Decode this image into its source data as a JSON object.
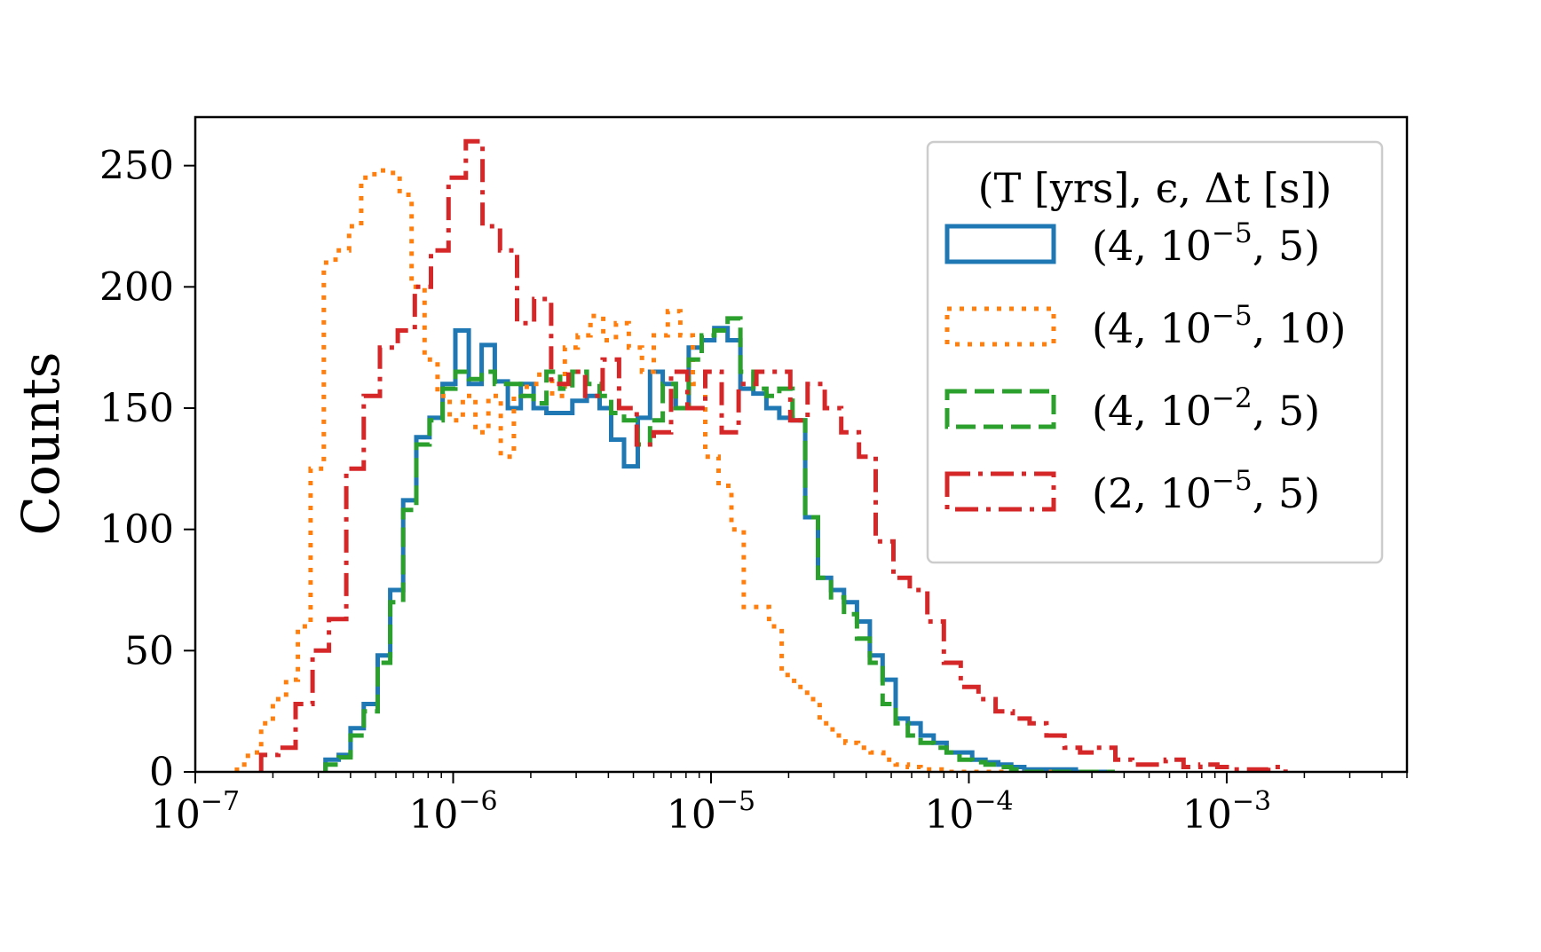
{
  "chart_data": {
    "type": "histogram-step",
    "title": "",
    "xlabel": "",
    "ylabel": "Counts",
    "xscale": "log",
    "xlim": [
      1e-07,
      0.005
    ],
    "ylim": [
      0,
      270
    ],
    "xticks": [
      {
        "value": 1e-07,
        "mant": "10",
        "exp": "−7"
      },
      {
        "value": 1e-06,
        "mant": "10",
        "exp": "−6"
      },
      {
        "value": 1e-05,
        "mant": "10",
        "exp": "−5"
      },
      {
        "value": 0.0001,
        "mant": "10",
        "exp": "−4"
      },
      {
        "value": 0.001,
        "mant": "10",
        "exp": "−3"
      }
    ],
    "yticks": [
      {
        "value": 0,
        "label": "0"
      },
      {
        "value": 50,
        "label": "50"
      },
      {
        "value": 100,
        "label": "100"
      },
      {
        "value": 150,
        "label": "150"
      },
      {
        "value": 200,
        "label": "200"
      },
      {
        "value": 250,
        "label": "250"
      }
    ],
    "legend": {
      "placement": "top-right",
      "title": "(T [yrs], ϵ, Δt [s])"
    },
    "series": [
      {
        "name": "(4, 10−5, 5)",
        "label_parts": {
          "pre": "(4, 10",
          "exp": "−5",
          "post": ", 5)"
        },
        "color": "#1f77b4",
        "dash": "solid",
        "bin_edges": [
          3.2e-07,
          3.6e-07,
          4e-07,
          4.5e-07,
          5.1e-07,
          5.7e-07,
          6.4e-07,
          7.2e-07,
          8.1e-07,
          9.1e-07,
          1.02e-06,
          1.15e-06,
          1.29e-06,
          1.45e-06,
          1.63e-06,
          1.83e-06,
          2.05e-06,
          2.3e-06,
          2.6e-06,
          2.9e-06,
          3.3e-06,
          3.7e-06,
          4.1e-06,
          4.6e-06,
          5.2e-06,
          5.8e-06,
          6.5e-06,
          7.3e-06,
          8.2e-06,
          9.2e-06,
          1.03e-05,
          1.16e-05,
          1.3e-05,
          1.46e-05,
          1.64e-05,
          1.84e-05,
          2.07e-05,
          2.32e-05,
          2.6e-05,
          2.92e-05,
          3.28e-05,
          3.68e-05,
          4.13e-05,
          4.63e-05,
          5.2e-05,
          5.8e-05,
          6.5e-05,
          7.3e-05,
          8.2e-05,
          9.2e-05,
          0.000103,
          0.000116,
          0.00013,
          0.000146,
          0.000164,
          0.000184,
          0.000207,
          0.000232,
          0.00026,
          0.000292,
          0.000328,
          0.000368
        ],
        "counts": [
          5,
          7,
          18,
          28,
          48,
          75,
          112,
          138,
          146,
          160,
          182,
          160,
          176,
          161,
          150,
          160,
          150,
          148,
          148,
          153,
          155,
          150,
          137,
          126,
          146,
          165,
          160,
          150,
          175,
          178,
          183,
          178,
          158,
          156,
          150,
          146,
          145,
          105,
          80,
          75,
          70,
          62,
          48,
          38,
          22,
          20,
          15,
          12,
          8,
          8,
          5,
          4,
          3,
          2,
          1,
          1,
          1,
          1,
          0,
          0,
          0
        ]
      },
      {
        "name": "(4, 10−5, 10)",
        "label_parts": {
          "pre": "(4, 10",
          "exp": "−5",
          "post": ", 10)"
        },
        "color": "#ff7f0e",
        "dash": "dotted",
        "bin_edges": [
          1.45e-07,
          1.6e-07,
          1.8e-07,
          2e-07,
          2.25e-07,
          2.5e-07,
          2.8e-07,
          3.15e-07,
          3.5e-07,
          3.95e-07,
          4.4e-07,
          4.95e-07,
          5.5e-07,
          6.2e-07,
          6.9e-07,
          7.75e-07,
          8.7e-07,
          9.7e-07,
          1.09e-06,
          1.22e-06,
          1.37e-06,
          1.53e-06,
          1.72e-06,
          1.93e-06,
          2.16e-06,
          2.42e-06,
          2.71e-06,
          3.04e-06,
          3.41e-06,
          3.82e-06,
          4.28e-06,
          4.8e-06,
          5.4e-06,
          6e-06,
          6.8e-06,
          7.6e-06,
          8.5e-06,
          9.5e-06,
          1.07e-05,
          1.2e-05,
          1.34e-05,
          1.5e-05,
          1.68e-05,
          1.88e-05,
          2.1e-05,
          2.36e-05,
          2.64e-05,
          2.96e-05,
          3.32e-05,
          3.72e-05,
          4.16e-05,
          4.66e-05,
          5.2e-05,
          5.8e-05,
          6.5e-05,
          7.3e-05,
          8.2e-05,
          9.2e-05,
          0.000103,
          0.000116,
          0.00013,
          0.000146,
          0.000164,
          0.000184,
          0.000207,
          0.000232
        ],
        "counts": [
          3,
          8,
          20,
          30,
          38,
          60,
          125,
          210,
          215,
          225,
          245,
          248,
          247,
          238,
          200,
          170,
          155,
          145,
          155,
          140,
          155,
          130,
          155,
          160,
          165,
          155,
          175,
          180,
          188,
          178,
          185,
          175,
          165,
          180,
          190,
          180,
          160,
          130,
          118,
          100,
          68,
          68,
          60,
          40,
          35,
          30,
          20,
          15,
          12,
          10,
          8,
          5,
          3,
          2,
          1,
          1,
          0,
          0,
          0,
          0,
          0,
          0,
          0,
          0,
          0
        ]
      },
      {
        "name": "(4, 10−2, 5)",
        "label_parts": {
          "pre": "(4, 10",
          "exp": "−2",
          "post": ", 5)"
        },
        "color": "#2ca02c",
        "dash": "dashed",
        "bin_edges": [
          3.2e-07,
          3.6e-07,
          4e-07,
          4.5e-07,
          5.1e-07,
          5.7e-07,
          6.4e-07,
          7.2e-07,
          8.1e-07,
          9.1e-07,
          1.02e-06,
          1.15e-06,
          1.29e-06,
          1.45e-06,
          1.63e-06,
          1.83e-06,
          2.05e-06,
          2.3e-06,
          2.6e-06,
          2.9e-06,
          3.3e-06,
          3.7e-06,
          4.1e-06,
          4.6e-06,
          5.2e-06,
          5.8e-06,
          6.5e-06,
          7.3e-06,
          8.2e-06,
          9.2e-06,
          1.03e-05,
          1.16e-05,
          1.3e-05,
          1.46e-05,
          1.64e-05,
          1.84e-05,
          2.07e-05,
          2.32e-05,
          2.6e-05,
          2.92e-05,
          3.28e-05,
          3.68e-05,
          4.13e-05,
          4.63e-05,
          5.2e-05,
          5.8e-05,
          6.5e-05,
          7.3e-05,
          8.2e-05,
          9.2e-05,
          0.000103,
          0.000116,
          0.00013,
          0.000146,
          0.000164,
          0.000184,
          0.000207,
          0.000232,
          0.00026,
          0.000292,
          0.000328,
          0.000368
        ],
        "counts": [
          3,
          6,
          15,
          25,
          45,
          70,
          108,
          135,
          145,
          158,
          165,
          162,
          165,
          160,
          160,
          155,
          152,
          165,
          158,
          165,
          160,
          155,
          148,
          145,
          135,
          145,
          160,
          150,
          170,
          180,
          182,
          187,
          165,
          158,
          155,
          158,
          145,
          105,
          80,
          72,
          65,
          55,
          45,
          28,
          20,
          15,
          12,
          10,
          8,
          5,
          4,
          3,
          2,
          1,
          0,
          0,
          0,
          0,
          0,
          0,
          0
        ]
      },
      {
        "name": "(2, 10−5, 5)",
        "label_parts": {
          "pre": "(2, 10",
          "exp": "−5",
          "post": ", 5)"
        },
        "color": "#d62728",
        "dash": "dashdot",
        "bin_edges": [
          1.8e-07,
          2.1e-07,
          2.45e-07,
          2.85e-07,
          3.3e-07,
          3.85e-07,
          4.5e-07,
          5.2e-07,
          6.1e-07,
          7.1e-07,
          8.2e-07,
          9.6e-07,
          1.12e-06,
          1.3e-06,
          1.52e-06,
          1.77e-06,
          2.06e-06,
          2.4e-06,
          2.8e-06,
          3.25e-06,
          3.8e-06,
          4.4e-06,
          5.15e-06,
          6e-06,
          7e-06,
          8.1e-06,
          9.5e-06,
          1.1e-05,
          1.28e-05,
          1.5e-05,
          1.74e-05,
          2.03e-05,
          2.37e-05,
          2.76e-05,
          3.2e-05,
          3.75e-05,
          4.35e-05,
          5.1e-05,
          5.9e-05,
          6.9e-05,
          8e-05,
          9.3e-05,
          0.000109,
          0.000127,
          0.000148,
          0.000172,
          0.0002,
          0.000235,
          0.00027,
          0.00032,
          0.00037,
          0.00043,
          0.0005,
          0.00058,
          0.00068,
          0.00079,
          0.00092,
          0.00107,
          0.00125,
          0.00145,
          0.00169
        ],
        "counts": [
          7,
          10,
          28,
          50,
          63,
          125,
          155,
          175,
          182,
          200,
          215,
          245,
          260,
          225,
          215,
          185,
          195,
          160,
          165,
          155,
          170,
          150,
          135,
          140,
          165,
          150,
          165,
          140,
          160,
          165,
          165,
          145,
          160,
          150,
          140,
          130,
          95,
          80,
          75,
          62,
          45,
          35,
          30,
          25,
          22,
          20,
          15,
          10,
          8,
          10,
          5,
          3,
          3,
          5,
          2,
          3,
          2,
          1,
          1,
          2
        ]
      }
    ]
  }
}
